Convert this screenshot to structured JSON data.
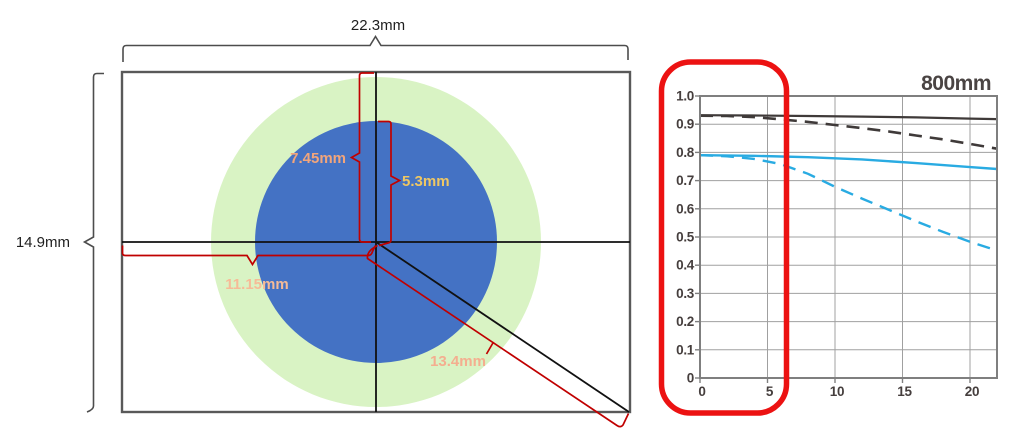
{
  "diagram": {
    "width_label": "22.3mm",
    "height_label": "14.9mm",
    "half_height_label": "7.45mm",
    "inner_circle_radius_label": "5.3mm",
    "half_width_label": "11.15mm",
    "semi_diagonal_label": "13.4mm",
    "colors": {
      "outer_circle": "#d9f3c4",
      "inner_circle": "#4472c4",
      "measure_line": "#c00000",
      "half_height_text": "#f2a57b",
      "inner_radius_text": "#efc763",
      "half_width_text": "#f6bb97",
      "semi_diagonal_text": "#f4ae8f"
    }
  },
  "chart_data": {
    "type": "line",
    "title": "800mm",
    "xlabel": "",
    "ylabel": "",
    "xlim": [
      0,
      22
    ],
    "ylim": [
      0,
      1
    ],
    "grid": true,
    "x_tick_values": [
      0,
      5,
      10,
      15,
      20
    ],
    "x_tick_labels": [
      "0",
      "5",
      "10",
      "15",
      "20"
    ],
    "y_tick_values": [
      1.0,
      0.9,
      0.8,
      0.7,
      0.6,
      0.5,
      0.4,
      0.3,
      0.2,
      0.1,
      0
    ],
    "y_tick_labels": [
      "1.0",
      "0.9",
      "0.8",
      "0.7",
      "0.6",
      "0.5",
      "0.4",
      "0.3",
      "0.2",
      "0.1",
      "0"
    ],
    "series": [
      {
        "name": "black-solid",
        "color": "#3f3a39",
        "style": "solid",
        "stroke_width": 2.2,
        "points": [
          [
            0,
            0.932
          ],
          [
            4,
            0.931
          ],
          [
            8,
            0.929
          ],
          [
            12,
            0.927
          ],
          [
            16,
            0.924
          ],
          [
            20,
            0.92
          ],
          [
            22,
            0.918
          ]
        ]
      },
      {
        "name": "black-dashed",
        "color": "#3f3a39",
        "style": "dashed",
        "stroke_width": 2.6,
        "points": [
          [
            0,
            0.93
          ],
          [
            2,
            0.929
          ],
          [
            4,
            0.925
          ],
          [
            6,
            0.917
          ],
          [
            8,
            0.908
          ],
          [
            10,
            0.897
          ],
          [
            12,
            0.886
          ],
          [
            14,
            0.874
          ],
          [
            16,
            0.86
          ],
          [
            18,
            0.846
          ],
          [
            20,
            0.83
          ],
          [
            22,
            0.813
          ]
        ]
      },
      {
        "name": "blue-solid",
        "color": "#29abe2",
        "style": "solid",
        "stroke_width": 2.4,
        "points": [
          [
            0,
            0.79
          ],
          [
            4,
            0.788
          ],
          [
            8,
            0.783
          ],
          [
            12,
            0.775
          ],
          [
            16,
            0.762
          ],
          [
            20,
            0.748
          ],
          [
            22,
            0.741
          ]
        ]
      },
      {
        "name": "blue-dashed",
        "color": "#29abe2",
        "style": "dashed",
        "stroke_width": 2.4,
        "points": [
          [
            0,
            0.79
          ],
          [
            2,
            0.786
          ],
          [
            4,
            0.777
          ],
          [
            6,
            0.758
          ],
          [
            8,
            0.724
          ],
          [
            10,
            0.678
          ],
          [
            12,
            0.636
          ],
          [
            14,
            0.596
          ],
          [
            16,
            0.556
          ],
          [
            18,
            0.518
          ],
          [
            20,
            0.483
          ],
          [
            22,
            0.452
          ]
        ]
      }
    ]
  },
  "annotations": {
    "highlight_color": "#ec1212"
  }
}
